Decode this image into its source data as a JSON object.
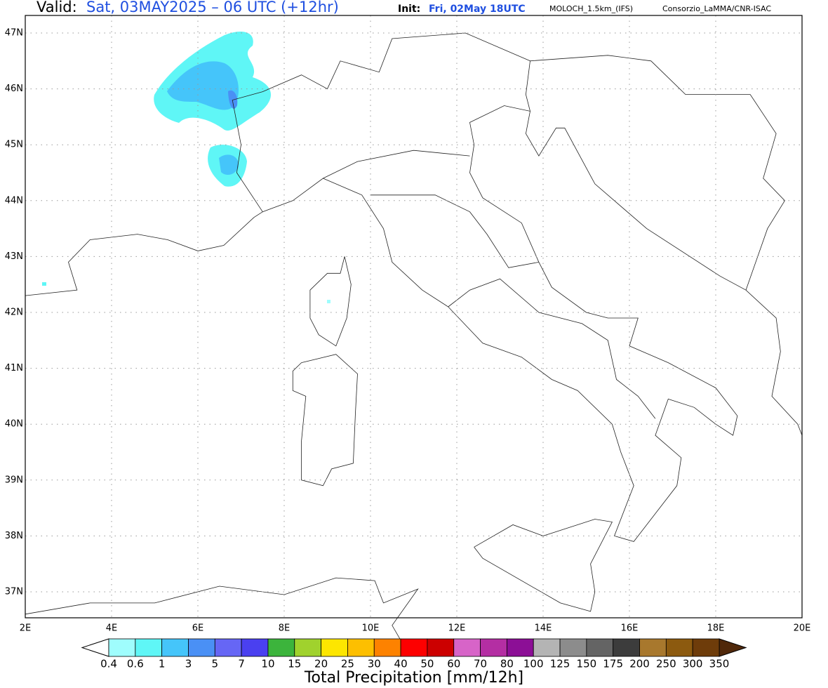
{
  "header": {
    "valid_label": "Valid:",
    "valid_time": "Sat, 03MAY2025 – 06 UTC (+12hr)",
    "init_label": "Init:",
    "init_time": "Fri, 02May 18UTC",
    "model": "MOLOCH_1.5km_(IFS)",
    "credit": "Consorzio_LaMMA/CNR-ISAC"
  },
  "map": {
    "lat_labels": [
      "47N",
      "46N",
      "45N",
      "44N",
      "43N",
      "42N",
      "41N",
      "40N",
      "39N",
      "38N",
      "37N"
    ],
    "lon_labels": [
      "2E",
      "4E",
      "6E",
      "8E",
      "10E",
      "12E",
      "14E",
      "16E",
      "18E",
      "20E"
    ]
  },
  "colorbar": {
    "title": "Total Precipitation [mm/12h]",
    "labels": [
      "0.4",
      "0.6",
      "1",
      "3",
      "5",
      "7",
      "10",
      "15",
      "20",
      "25",
      "30",
      "40",
      "50",
      "60",
      "70",
      "80",
      "100",
      "125",
      "150",
      "175",
      "200",
      "250",
      "300",
      "350"
    ],
    "colors": [
      "#9ffdfd",
      "#5ff6f6",
      "#45c5fa",
      "#4a90f5",
      "#6666f5",
      "#4a40f0",
      "#3cb43c",
      "#a0d22d",
      "#fde600",
      "#fdbf00",
      "#fd8200",
      "#fd0000",
      "#cc0000",
      "#d764c8",
      "#b42ea3",
      "#8c0f96",
      "#b4b4b4",
      "#8c8c8c",
      "#646464",
      "#3c3c3c",
      "#a8782d",
      "#8c5a0f",
      "#6e3c0a"
    ],
    "under_color": "#ffffff",
    "over_color": "#50280a"
  }
}
